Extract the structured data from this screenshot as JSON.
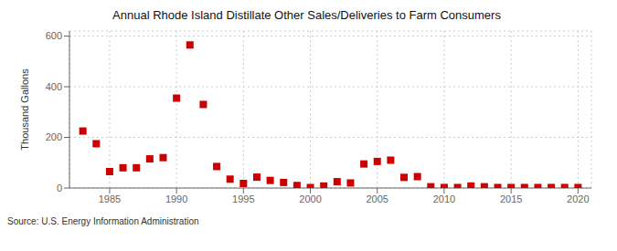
{
  "chart_data": {
    "type": "scatter",
    "title": "Annual Rhode Island Distillate Other Sales/Deliveries to Farm Consumers",
    "y_label": "Thousand Gallons",
    "annotations": [
      "Source: U.S. Energy Information Administration"
    ],
    "x": [
      1983,
      1984,
      1985,
      1986,
      1987,
      1988,
      1989,
      1990,
      1991,
      1992,
      1993,
      1994,
      1995,
      1996,
      1997,
      1998,
      1999,
      2000,
      2001,
      2002,
      2003,
      2004,
      2005,
      2006,
      2007,
      2008,
      2009,
      2010,
      2011,
      2012,
      2013,
      2014,
      2015,
      2016,
      2017,
      2018,
      2019,
      2020
    ],
    "values": [
      225,
      175,
      65,
      80,
      80,
      115,
      120,
      355,
      565,
      330,
      85,
      35,
      18,
      43,
      30,
      22,
      10,
      2,
      8,
      25,
      20,
      95,
      105,
      110,
      42,
      45,
      5,
      2,
      2,
      8,
      5,
      2,
      2,
      2,
      2,
      2,
      2,
      2
    ],
    "color": "#cc0000",
    "marker": "square",
    "xlim": [
      1982,
      2021
    ],
    "ylim": [
      0,
      620
    ],
    "xticks": [
      1985,
      1990,
      1995,
      2000,
      2005,
      2010,
      2015,
      2020
    ],
    "yticks": [
      0,
      200,
      400,
      600
    ],
    "grid": true
  }
}
